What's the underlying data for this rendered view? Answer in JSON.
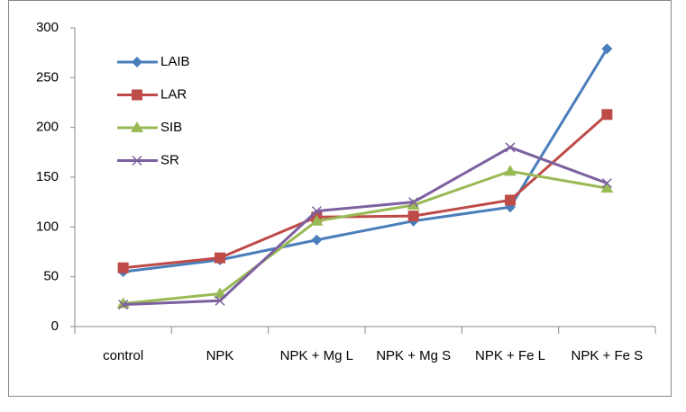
{
  "chart_data": {
    "type": "line",
    "categories": [
      "control",
      "NPK",
      "NPK + Mg L",
      "NPK + Mg S",
      "NPK + Fe L",
      "NPK + Fe S"
    ],
    "series": [
      {
        "name": "LAIB",
        "color": "#4a7ebb",
        "marker": "diamond",
        "values": [
          55,
          67,
          87,
          106,
          120,
          279
        ]
      },
      {
        "name": "LAR",
        "color": "#be4b48",
        "marker": "square",
        "values": [
          59,
          69,
          110,
          111,
          127,
          213
        ]
      },
      {
        "name": "SIB",
        "color": "#98b954",
        "marker": "triangle",
        "values": [
          23,
          33,
          106,
          122,
          156,
          139
        ]
      },
      {
        "name": "SR",
        "color": "#7d60a0",
        "marker": "x",
        "values": [
          22,
          26,
          116,
          125,
          180,
          144
        ]
      }
    ],
    "ylim": [
      0,
      300
    ],
    "yticks": [
      0,
      50,
      100,
      150,
      200,
      250,
      300
    ],
    "grid": false,
    "legend": "top-left"
  }
}
